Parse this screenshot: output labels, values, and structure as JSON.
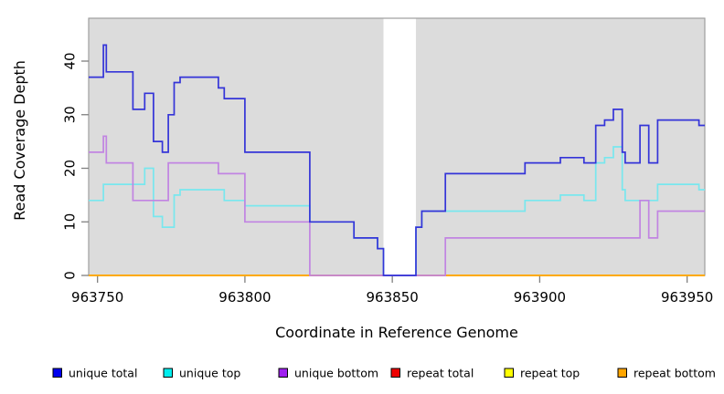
{
  "figure": {
    "xlabel": "Coordinate in Reference Genome",
    "ylabel": "Read Coverage Depth"
  },
  "chart_data": {
    "type": "line",
    "subtype": "step",
    "title": "",
    "xlabel": "Coordinate in Reference Genome",
    "ylabel": "Read Coverage Depth",
    "xlim": [
      963747,
      963956
    ],
    "ylim": [
      0,
      48
    ],
    "x_ticks": [
      963750,
      963800,
      963850,
      963900,
      963950
    ],
    "y_ticks": [
      0,
      10,
      20,
      30,
      40
    ],
    "grid": false,
    "legend_position": "bottom",
    "panel_background": "#dcdcdc",
    "panel_border": "#9e9e9e",
    "tick_color": "#808080",
    "text_color": "#000000",
    "gap_region": [
      963847,
      963858
    ],
    "step_x": [
      963747,
      963752,
      963753,
      963762,
      963766,
      963769,
      963772,
      963774,
      963776,
      963778,
      963791,
      963793,
      963800,
      963822,
      963837,
      963845,
      963847,
      963858,
      963860,
      963868,
      963895,
      963907,
      963915,
      963919,
      963922,
      963925,
      963928,
      963929,
      963934,
      963937,
      963940,
      963954,
      963956
    ],
    "series": [
      {
        "name": "unique total",
        "line_color": "#3434d8",
        "legend_color": "#0000ee",
        "values": [
          37,
          43,
          38,
          31,
          34,
          25,
          23,
          30,
          36,
          37,
          35,
          33,
          23,
          10,
          7,
          5,
          0,
          9,
          12,
          19,
          21,
          22,
          21,
          28,
          29,
          31,
          23,
          21,
          28,
          21,
          29,
          28
        ]
      },
      {
        "name": "unique top",
        "line_color": "#78e7ee",
        "legend_color": "#00eeee",
        "values": [
          14,
          17,
          17,
          17,
          20,
          11,
          9,
          9,
          15,
          16,
          16,
          14,
          13,
          10,
          7,
          5,
          0,
          9,
          12,
          12,
          14,
          15,
          14,
          21,
          22,
          24,
          16,
          14,
          14,
          14,
          17,
          16
        ]
      },
      {
        "name": "unique bottom",
        "line_color": "#c184e2",
        "legend_color": "#a020f0",
        "values": [
          23,
          26,
          21,
          14,
          14,
          14,
          14,
          21,
          21,
          21,
          19,
          19,
          10,
          0,
          0,
          0,
          0,
          0,
          0,
          7,
          7,
          7,
          7,
          7,
          7,
          7,
          7,
          7,
          14,
          7,
          12,
          12
        ]
      },
      {
        "name": "repeat total",
        "line_color": "#ee0000",
        "legend_color": "#ee0000",
        "values": [
          0,
          0,
          0,
          0,
          0,
          0,
          0,
          0,
          0,
          0,
          0,
          0,
          0,
          0,
          0,
          0,
          0,
          0,
          0,
          0,
          0,
          0,
          0,
          0,
          0,
          0,
          0,
          0,
          0,
          0,
          0,
          0
        ]
      },
      {
        "name": "repeat top",
        "line_color": "#ffff00",
        "legend_color": "#ffff00",
        "values": [
          0,
          0,
          0,
          0,
          0,
          0,
          0,
          0,
          0,
          0,
          0,
          0,
          0,
          0,
          0,
          0,
          0,
          0,
          0,
          0,
          0,
          0,
          0,
          0,
          0,
          0,
          0,
          0,
          0,
          0,
          0,
          0
        ]
      },
      {
        "name": "repeat bottom",
        "line_color": "#ffa500",
        "legend_color": "#ffa500",
        "values": [
          0,
          0,
          0,
          0,
          0,
          0,
          0,
          0,
          0,
          0,
          0,
          0,
          0,
          0,
          0,
          0,
          0,
          0,
          0,
          0,
          0,
          0,
          0,
          0,
          0,
          0,
          0,
          0,
          0,
          0,
          0,
          0
        ]
      }
    ],
    "draw_order": [
      3,
      4,
      5,
      1,
      2,
      0
    ]
  }
}
